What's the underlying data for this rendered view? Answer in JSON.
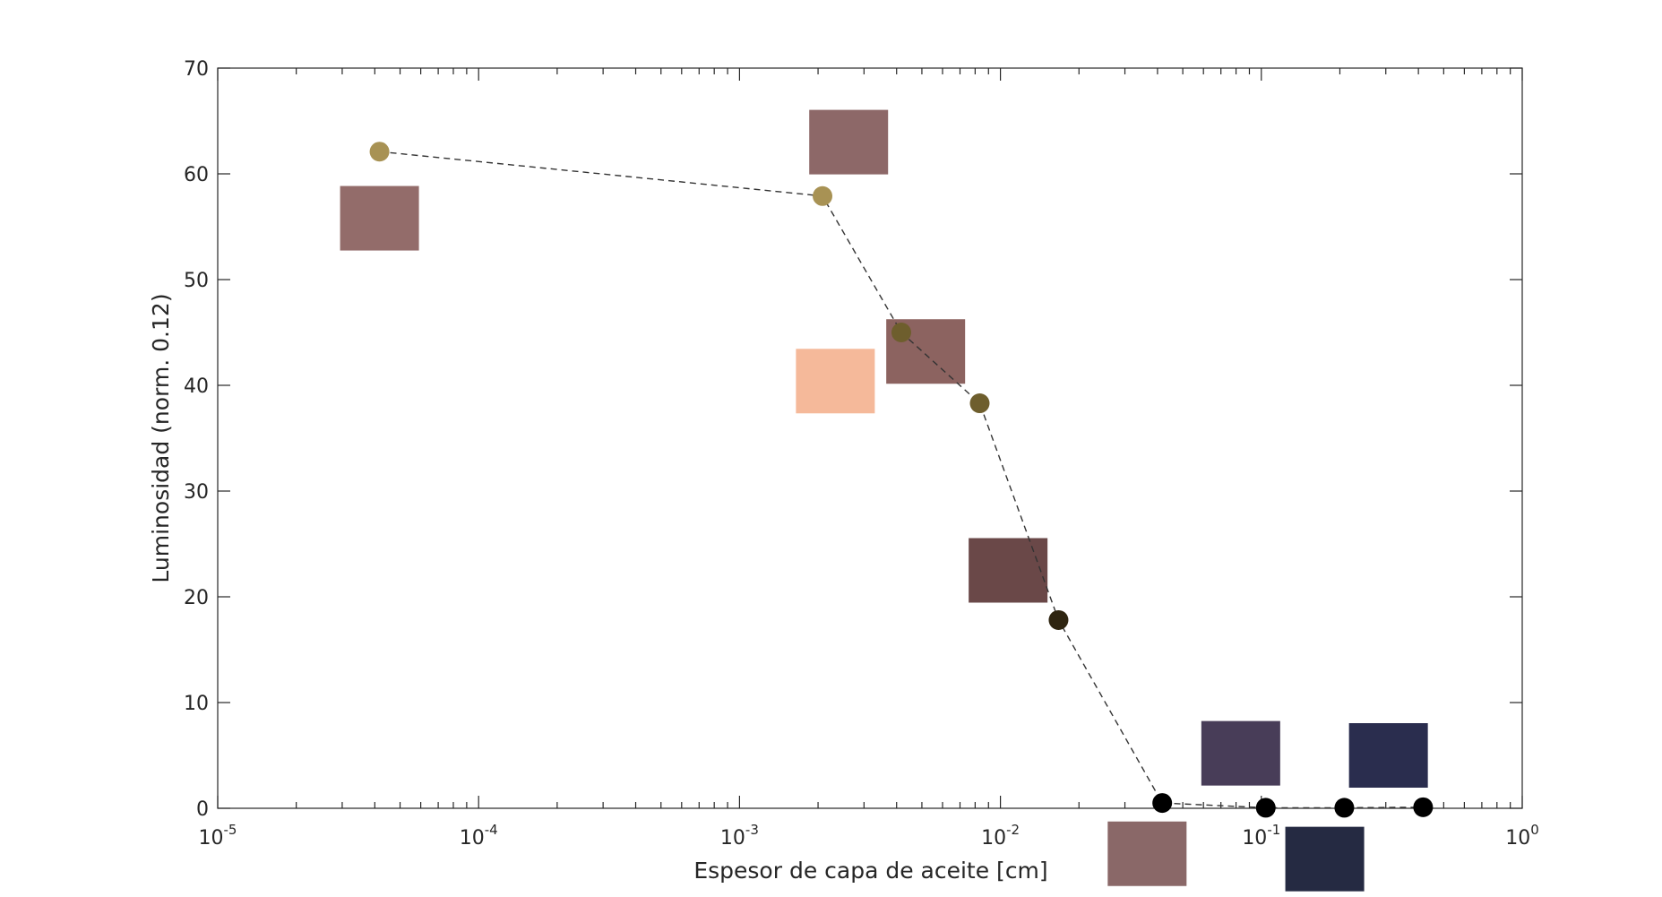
{
  "chart_data": {
    "type": "scatter",
    "title": "",
    "xlabel": "Espesor de capa de aceite [cm]",
    "ylabel": "Luminosidad (norm. 0.12)",
    "xscale": "log",
    "xlim": [
      1e-05,
      1
    ],
    "ylim": [
      0,
      70
    ],
    "grid": false,
    "legend": "none",
    "x_ticks": [
      {
        "base": "10",
        "exp": "-5",
        "value": 1e-05
      },
      {
        "base": "10",
        "exp": "-4",
        "value": 0.0001
      },
      {
        "base": "10",
        "exp": "-3",
        "value": 0.001
      },
      {
        "base": "10",
        "exp": "-2",
        "value": 0.01
      },
      {
        "base": "10",
        "exp": "-1",
        "value": 0.1
      },
      {
        "base": "10",
        "exp": "0",
        "value": 1
      }
    ],
    "y_ticks": [
      "0",
      "10",
      "20",
      "30",
      "40",
      "50",
      "60",
      "70"
    ],
    "line_style": "dashed",
    "line_color": "#333333",
    "series": [
      {
        "x": [
          4.17e-05,
          0.00208,
          0.00417,
          0.00833,
          0.0167,
          0.0417,
          0.104,
          0.208,
          0.417
        ],
        "y": [
          62.1,
          57.9,
          45.0,
          38.3,
          17.8,
          0.5,
          0.05,
          0.05,
          0.1
        ],
        "marker_colors": [
          "#a89254",
          "#a89254",
          "#6e5e2d",
          "#6e5e2d",
          "#2e2410",
          "#000000",
          "#000000",
          "#000000",
          "#000000"
        ]
      }
    ],
    "thumbnails": [
      {
        "x": 4.17e-05,
        "y": 55.8,
        "color": "#936c6a"
      },
      {
        "x": 0.00262,
        "y": 63.0,
        "color": "#8d6868"
      },
      {
        "x": 0.00233,
        "y": 40.4,
        "color": "#f5b99a"
      },
      {
        "x": 0.00517,
        "y": 43.2,
        "color": "#8c6360"
      },
      {
        "x": 0.0107,
        "y": 22.5,
        "color": "#6a4848"
      },
      {
        "x": 0.0834,
        "y": 5.2,
        "color": "#483d58"
      },
      {
        "x": 0.0365,
        "y": -4.3,
        "color": "#8a6868"
      },
      {
        "x": 0.175,
        "y": -4.8,
        "color": "#252a42"
      },
      {
        "x": 0.307,
        "y": 5.0,
        "color": "#2a2d4e"
      }
    ]
  }
}
